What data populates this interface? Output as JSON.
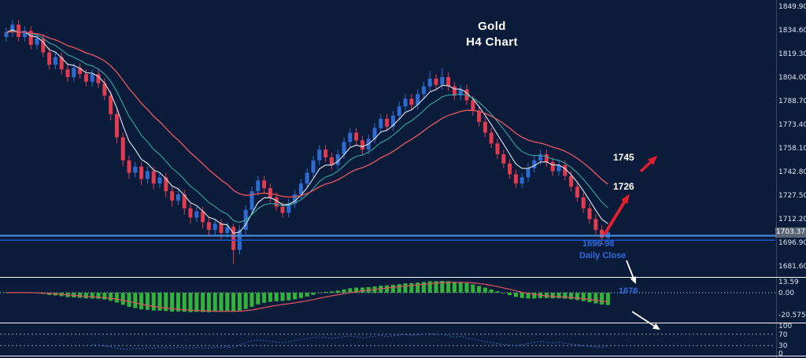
{
  "colors": {
    "background": "#0b1c3a",
    "bull_candle": "#2e6bd0",
    "bear_candle": "#e23b50",
    "ma_fast": "#e2e8f0",
    "ma_mid": "#2fa8a0",
    "ma_slow": "#e05560",
    "macd_histogram": "#32b33c",
    "macd_signal": "#e05560",
    "oscillator_line": "#3f6fd8",
    "level_upper": "#4a90e2",
    "level_lower": "#1f55c8",
    "separator": "#ffffff",
    "grid_dotted": "#9aa8bc",
    "axis_text": "#dce4f0",
    "arrow_red": "#e01f2f",
    "arrow_white": "#ffffff",
    "annotation_blue": "#2e6bdf",
    "price_tag_bg": "#5a6578"
  },
  "chart_data": {
    "type": "candlestick",
    "instrument": "Gold",
    "timeframe": "H4",
    "title_line1": "Gold",
    "title_line2": "H4 Chart",
    "current_price": "1703.37",
    "price_axis_ticks": [
      1849.9,
      1834.6,
      1819.3,
      1804.0,
      1788.7,
      1773.4,
      1758.1,
      1742.8,
      1727.5,
      1712.2,
      1696.9,
      1681.6
    ],
    "macd_axis_ticks": [
      "13.59",
      "0.00",
      "-20.575"
    ],
    "oscillator_axis_ticks": [
      "100",
      "70",
      "30",
      "0"
    ],
    "oscillator_levels": [
      70,
      30
    ],
    "horizontal_levels": [
      {
        "name": "support-line-upper",
        "price": 1701.2
      },
      {
        "name": "support-line-lower",
        "price": 1698.3
      }
    ],
    "moving_averages": [
      {
        "name": "ema-fast",
        "period": 5
      },
      {
        "name": "ema-mid",
        "period": 10
      },
      {
        "name": "ema-slow",
        "period": 21
      }
    ],
    "indicators": [
      {
        "name": "macd-histogram",
        "params": "12,26,9"
      },
      {
        "name": "oscillator",
        "params": "14"
      }
    ],
    "annotations": {
      "target_high": "1745",
      "target_mid": "1726",
      "support_zone": "1696-98",
      "support_note": "Daily Close",
      "target_low": "1676"
    },
    "ohlc": [
      [
        1830,
        1836,
        1827,
        1833
      ],
      [
        1833,
        1841,
        1830,
        1838
      ],
      [
        1838,
        1841,
        1827,
        1830
      ],
      [
        1830,
        1837,
        1827,
        1834
      ],
      [
        1834,
        1837,
        1822,
        1825
      ],
      [
        1825,
        1832,
        1822,
        1829
      ],
      [
        1829,
        1832,
        1817,
        1820
      ],
      [
        1820,
        1823,
        1809,
        1812
      ],
      [
        1812,
        1820,
        1809,
        1817
      ],
      [
        1817,
        1820,
        1806,
        1809
      ],
      [
        1809,
        1812,
        1801,
        1804
      ],
      [
        1804,
        1813,
        1801,
        1810
      ],
      [
        1810,
        1813,
        1803,
        1806
      ],
      [
        1806,
        1809,
        1798,
        1801
      ],
      [
        1801,
        1809,
        1798,
        1806
      ],
      [
        1806,
        1809,
        1797,
        1800
      ],
      [
        1800,
        1803,
        1789,
        1792
      ],
      [
        1792,
        1795,
        1776,
        1780
      ],
      [
        1780,
        1783,
        1761,
        1765
      ],
      [
        1765,
        1768,
        1746,
        1750
      ],
      [
        1750,
        1753,
        1738,
        1742
      ],
      [
        1742,
        1749,
        1739,
        1746
      ],
      [
        1746,
        1749,
        1734,
        1738
      ],
      [
        1738,
        1746,
        1735,
        1743
      ],
      [
        1743,
        1746,
        1731,
        1735
      ],
      [
        1735,
        1742,
        1732,
        1739
      ],
      [
        1739,
        1742,
        1726,
        1730
      ],
      [
        1730,
        1733,
        1720,
        1724
      ],
      [
        1724,
        1731,
        1721,
        1728
      ],
      [
        1728,
        1731,
        1715,
        1719
      ],
      [
        1719,
        1722,
        1709,
        1713
      ],
      [
        1713,
        1720,
        1710,
        1717
      ],
      [
        1717,
        1720,
        1706,
        1710
      ],
      [
        1710,
        1713,
        1701,
        1705
      ],
      [
        1705,
        1712,
        1702,
        1709
      ],
      [
        1709,
        1712,
        1699,
        1703
      ],
      [
        1703,
        1710,
        1700,
        1707
      ],
      [
        1707,
        1709,
        1683,
        1692
      ],
      [
        1692,
        1708,
        1689,
        1705
      ],
      [
        1705,
        1721,
        1702,
        1718
      ],
      [
        1718,
        1733,
        1715,
        1730
      ],
      [
        1730,
        1740,
        1727,
        1737
      ],
      [
        1737,
        1740,
        1729,
        1732
      ],
      [
        1732,
        1735,
        1723,
        1726
      ],
      [
        1726,
        1729,
        1717,
        1720
      ],
      [
        1720,
        1723,
        1713,
        1716
      ],
      [
        1716,
        1725,
        1713,
        1722
      ],
      [
        1722,
        1731,
        1719,
        1728
      ],
      [
        1728,
        1738,
        1725,
        1735
      ],
      [
        1735,
        1745,
        1732,
        1742
      ],
      [
        1742,
        1753,
        1739,
        1750
      ],
      [
        1750,
        1760,
        1747,
        1757
      ],
      [
        1757,
        1760,
        1749,
        1752
      ],
      [
        1752,
        1755,
        1744,
        1747
      ],
      [
        1747,
        1757,
        1744,
        1754
      ],
      [
        1754,
        1765,
        1751,
        1762
      ],
      [
        1762,
        1771,
        1759,
        1768
      ],
      [
        1768,
        1771,
        1760,
        1763
      ],
      [
        1763,
        1766,
        1754,
        1757
      ],
      [
        1757,
        1767,
        1754,
        1764
      ],
      [
        1764,
        1774,
        1761,
        1771
      ],
      [
        1771,
        1780,
        1768,
        1777
      ],
      [
        1777,
        1780,
        1769,
        1772
      ],
      [
        1772,
        1782,
        1769,
        1779
      ],
      [
        1779,
        1788,
        1776,
        1785
      ],
      [
        1785,
        1793,
        1782,
        1790
      ],
      [
        1790,
        1793,
        1783,
        1786
      ],
      [
        1786,
        1796,
        1783,
        1793
      ],
      [
        1793,
        1801,
        1790,
        1798
      ],
      [
        1798,
        1808,
        1795,
        1803
      ],
      [
        1803,
        1806,
        1796,
        1799
      ],
      [
        1799,
        1810,
        1796,
        1804
      ],
      [
        1804,
        1807,
        1795,
        1798
      ],
      [
        1798,
        1801,
        1789,
        1792
      ],
      [
        1792,
        1799,
        1789,
        1796
      ],
      [
        1796,
        1799,
        1786,
        1789
      ],
      [
        1789,
        1792,
        1779,
        1782
      ],
      [
        1782,
        1785,
        1772,
        1775
      ],
      [
        1775,
        1778,
        1765,
        1768
      ],
      [
        1768,
        1771,
        1758,
        1761
      ],
      [
        1761,
        1764,
        1751,
        1754
      ],
      [
        1754,
        1757,
        1745,
        1748
      ],
      [
        1748,
        1751,
        1738,
        1741
      ],
      [
        1741,
        1744,
        1732,
        1735
      ],
      [
        1735,
        1742,
        1732,
        1739
      ],
      [
        1739,
        1748,
        1736,
        1745
      ],
      [
        1745,
        1753,
        1742,
        1750
      ],
      [
        1750,
        1757,
        1747,
        1754
      ],
      [
        1754,
        1757,
        1746,
        1749
      ],
      [
        1749,
        1752,
        1740,
        1743
      ],
      [
        1743,
        1750,
        1740,
        1747
      ],
      [
        1747,
        1750,
        1737,
        1740
      ],
      [
        1740,
        1743,
        1730,
        1733
      ],
      [
        1733,
        1736,
        1723,
        1726
      ],
      [
        1726,
        1729,
        1716,
        1719
      ],
      [
        1719,
        1722,
        1709,
        1712
      ],
      [
        1712,
        1715,
        1702,
        1705
      ],
      [
        1705,
        1708,
        1696,
        1700
      ],
      [
        1700,
        1706,
        1697,
        1703.37
      ]
    ]
  }
}
